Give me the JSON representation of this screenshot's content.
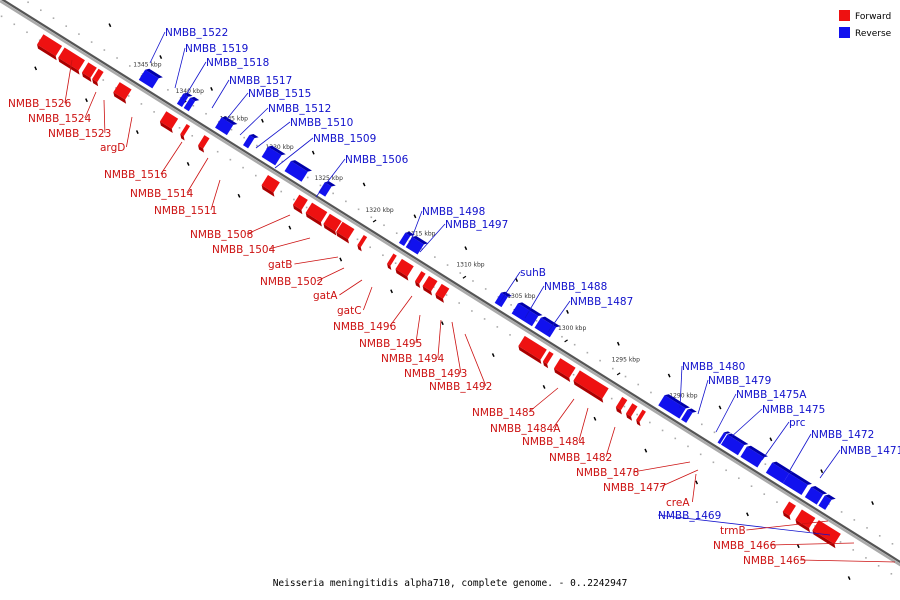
{
  "legend": [
    {
      "label": "Forward",
      "color": "#ee1111"
    },
    {
      "label": "Reverse",
      "color": "#1111ee"
    }
  ],
  "caption": "Neisseria meningitidis alpha710, complete genome. - 0..2242947",
  "ticks": [
    {
      "label": "1345 kbp",
      "side": "upper"
    },
    {
      "label": "1340 kbp",
      "side": "upper"
    },
    {
      "label": "1335 kbp",
      "side": "upper"
    },
    {
      "label": "1330 kbp",
      "side": "upper"
    },
    {
      "label": "1325 kbp",
      "side": "upper"
    },
    {
      "label": "1320 kbp",
      "side": "upper"
    },
    {
      "label": "1315 kbp",
      "side": "upper"
    },
    {
      "label": "1310 kbp",
      "side": "upper"
    },
    {
      "label": "1305 kbp",
      "side": "upper"
    },
    {
      "label": "1300 kbp",
      "side": "upper"
    },
    {
      "label": "1295 kbp",
      "side": "upper"
    },
    {
      "label": "1290 kbp",
      "side": "upper"
    }
  ],
  "reverse_genes": [
    "NMBB_1522",
    "NMBB_1519",
    "NMBB_1518",
    "NMBB_1517",
    "NMBB_1515",
    "NMBB_1512",
    "NMBB_1510",
    "NMBB_1509",
    "NMBB_1506",
    "NMBB_1498",
    "NMBB_1497",
    "suhB",
    "NMBB_1488",
    "NMBB_1487",
    "NMBB_1480",
    "NMBB_1479",
    "NMBB_1475A",
    "NMBB_1475",
    "prc",
    "NMBB_1472",
    "NMBB_1471",
    "NMBB_1469"
  ],
  "forward_genes": [
    "NMBB_1526",
    "NMBB_1524",
    "NMBB_1523",
    "argD",
    "NMBB_1516",
    "NMBB_1514",
    "NMBB_1511",
    "NMBB_1508",
    "NMBB_1504",
    "gatB",
    "NMBB_1502",
    "gatA",
    "gatC",
    "NMBB_1496",
    "NMBB_1495",
    "NMBB_1494",
    "NMBB_1493",
    "NMBB_1492",
    "NMBB_1485",
    "NMBB_1484A",
    "NMBB_1484",
    "NMBB_1482",
    "NMBB_1478",
    "NMBB_1477",
    "creA",
    "trmB",
    "NMBB_1466",
    "NMBB_1465"
  ]
}
